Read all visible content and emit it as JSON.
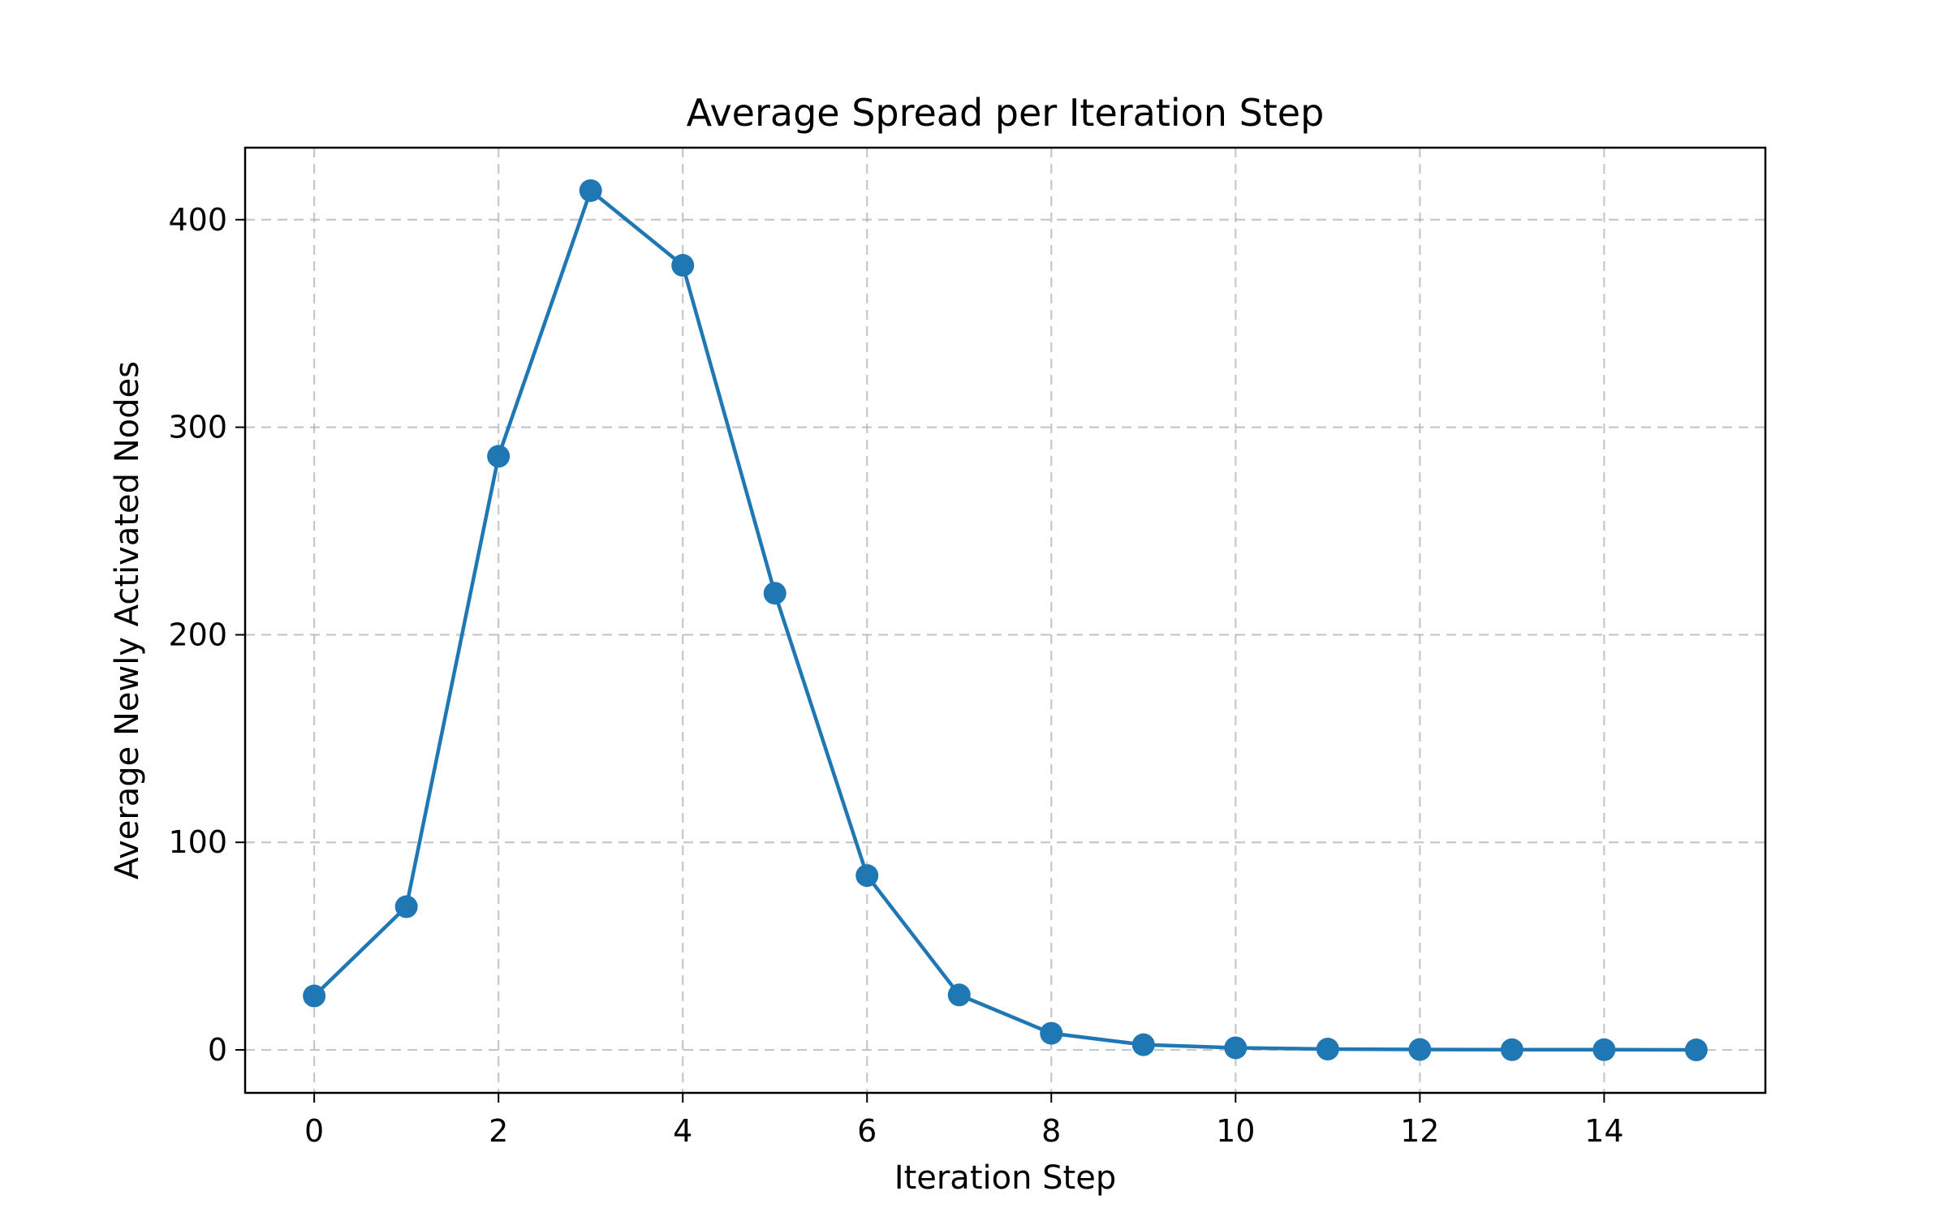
{
  "chart_data": {
    "type": "line",
    "title": "Average Spread per Iteration Step",
    "xlabel": "Iteration Step",
    "ylabel": "Average Newly Activated Nodes",
    "xlim": [
      -0.75,
      15.75
    ],
    "ylim": [
      -20.7,
      434.7
    ],
    "xticks": [
      0,
      2,
      4,
      6,
      8,
      10,
      12,
      14
    ],
    "xtick_labels": [
      "0",
      "2",
      "4",
      "6",
      "8",
      "10",
      "12",
      "14"
    ],
    "yticks": [
      0,
      100,
      200,
      300,
      400
    ],
    "ytick_labels": [
      "0",
      "100",
      "200",
      "300",
      "400"
    ],
    "grid": true,
    "series": [
      {
        "color": "#1f77b4",
        "marker": "circle",
        "x": [
          0,
          1,
          2,
          3,
          4,
          5,
          6,
          7,
          8,
          9,
          10,
          11,
          12,
          13,
          14,
          15
        ],
        "y": [
          26,
          69,
          286,
          414,
          378,
          220,
          84,
          26.5,
          8,
          2.5,
          1,
          0.4,
          0.2,
          0.1,
          0.1,
          0
        ]
      }
    ]
  }
}
